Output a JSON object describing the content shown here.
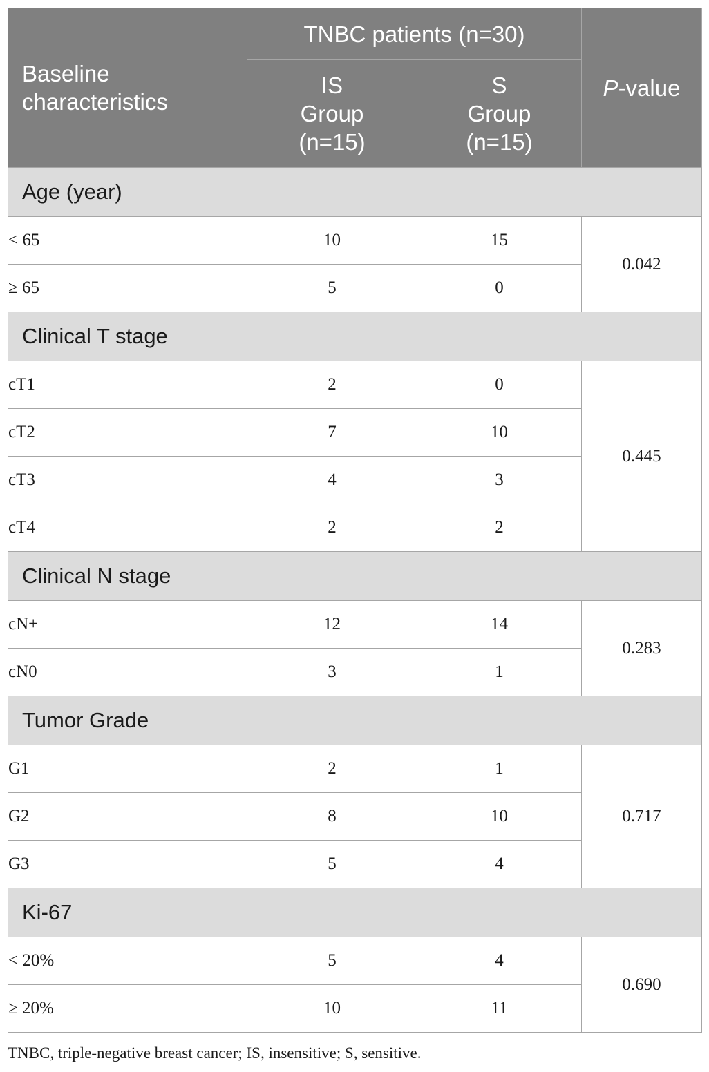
{
  "header": {
    "baseline_label": "Baseline characteristics",
    "group_title": "TNBC patients (n=30)",
    "is_group": "IS Group (n=15)",
    "s_group": "S Group (n=15)",
    "p_value_italic": "P",
    "p_value_rest": "-value"
  },
  "sections": [
    {
      "title": "Age (year)",
      "p_value": "0.042",
      "rows": [
        {
          "label": "< 65",
          "is": "10",
          "s": "15"
        },
        {
          "label": "≥ 65",
          "is": "5",
          "s": "0"
        }
      ]
    },
    {
      "title": "Clinical T stage",
      "p_value": "0.445",
      "rows": [
        {
          "label": "cT1",
          "is": "2",
          "s": "0"
        },
        {
          "label": "cT2",
          "is": "7",
          "s": "10"
        },
        {
          "label": "cT3",
          "is": "4",
          "s": "3"
        },
        {
          "label": "cT4",
          "is": "2",
          "s": "2"
        }
      ]
    },
    {
      "title": "Clinical N stage",
      "p_value": "0.283",
      "rows": [
        {
          "label": "cN+",
          "is": "12",
          "s": "14"
        },
        {
          "label": "cN0",
          "is": "3",
          "s": "1"
        }
      ]
    },
    {
      "title": "Tumor Grade",
      "p_value": "0.717",
      "rows": [
        {
          "label": "G1",
          "is": "2",
          "s": "1"
        },
        {
          "label": "G2",
          "is": "8",
          "s": "10"
        },
        {
          "label": "G3",
          "is": "5",
          "s": "4"
        }
      ]
    },
    {
      "title": "Ki-67",
      "p_value": "0.690",
      "rows": [
        {
          "label": "< 20%",
          "is": "5",
          "s": "4"
        },
        {
          "label": "≥ 20%",
          "is": "10",
          "s": "11"
        }
      ]
    }
  ],
  "footnote": "TNBC, triple-negative breast cancer; IS, insensitive; S, sensitive."
}
